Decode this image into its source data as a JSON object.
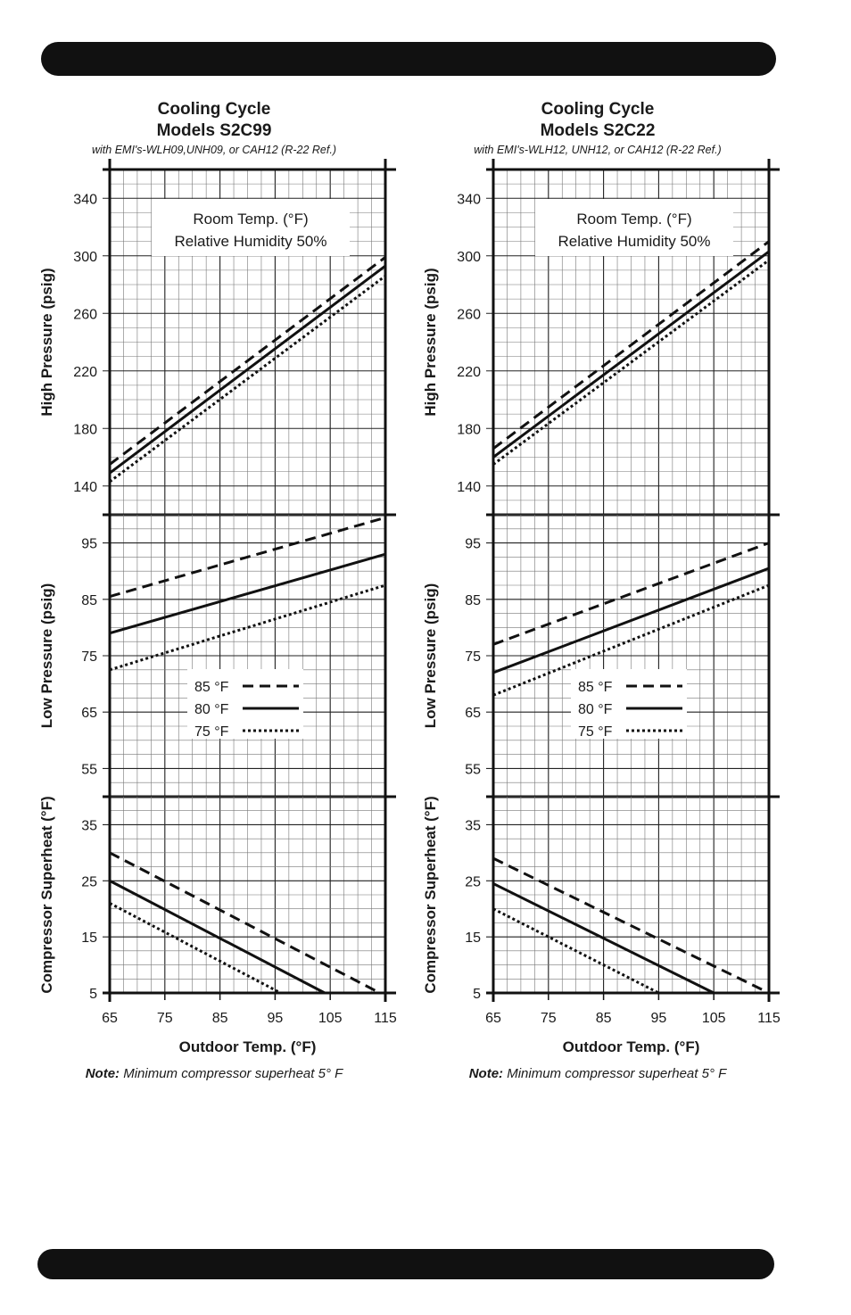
{
  "colors": {
    "ink": "#111111",
    "grid": "#777777",
    "background": "#ffffff"
  },
  "panels": [
    {
      "title1": "Cooling Cycle",
      "title2": "Models S2C99",
      "subtitle": "with EMI's-WLH09,UNH09, or CAH12 (R-22 Ref.)",
      "note_bold": "Note:",
      "note_text": " Minimum compressor superheat  5° F"
    },
    {
      "title1": "Cooling Cycle",
      "title2": "Models S2C22",
      "subtitle": "with EMI's-WLH12, UNH12, or CAH12 (R-22 Ref.)",
      "note_bold": "Note:",
      "note_text": " Minimum compressor superheat  5° F"
    }
  ],
  "room_box": {
    "line1": "Room Temp. (°F)",
    "line2": "Relative Humidity 50%"
  },
  "legend": [
    {
      "label": "85 °F",
      "dash": "dashed"
    },
    {
      "label": "80 °F",
      "dash": "solid"
    },
    {
      "label": "75 °F",
      "dash": "dotted"
    }
  ],
  "chart_data": [
    {
      "type": "line",
      "title": "Cooling Cycle Models S2C99",
      "xlabel": "Outdoor Temp. (°F)",
      "xlim": [
        65,
        115
      ],
      "x_ticks": [
        65,
        75,
        85,
        95,
        105,
        115
      ],
      "subplots": [
        {
          "name": "high",
          "ylabel": "High Pressure (psig)",
          "ylim": [
            120,
            360
          ],
          "y_ticks": [
            140,
            180,
            220,
            260,
            300,
            340
          ],
          "series": [
            {
              "name": "85 °F",
              "x": [
                65,
                115
              ],
              "y": [
                155,
                299
              ]
            },
            {
              "name": "80 °F",
              "x": [
                65,
                115
              ],
              "y": [
                149,
                293
              ]
            },
            {
              "name": "75 °F",
              "x": [
                65,
                115
              ],
              "y": [
                143,
                286
              ]
            }
          ]
        },
        {
          "name": "low",
          "ylabel": "Low Pressure (psig)",
          "ylim": [
            50,
            100
          ],
          "y_ticks": [
            55,
            65,
            75,
            85,
            95
          ],
          "series": [
            {
              "name": "85 °F",
              "x": [
                65,
                115
              ],
              "y": [
                85.5,
                99.5
              ]
            },
            {
              "name": "80 °F",
              "x": [
                65,
                115
              ],
              "y": [
                79,
                93
              ]
            },
            {
              "name": "75 °F",
              "x": [
                65,
                115
              ],
              "y": [
                72.5,
                87.5
              ]
            }
          ]
        },
        {
          "name": "superheat",
          "ylabel": "Compressor Superheat (°F)",
          "ylim": [
            5,
            40
          ],
          "y_ticks": [
            5,
            15,
            25,
            35
          ],
          "series": [
            {
              "name": "85 °F",
              "x": [
                65,
                114
              ],
              "y": [
                30,
                5
              ]
            },
            {
              "name": "80 °F",
              "x": [
                65,
                104
              ],
              "y": [
                25,
                5
              ]
            },
            {
              "name": "75 °F",
              "x": [
                65,
                96
              ],
              "y": [
                21,
                5
              ]
            }
          ]
        }
      ]
    },
    {
      "type": "line",
      "title": "Cooling Cycle Models S2C22",
      "xlabel": "Outdoor Temp. (°F)",
      "xlim": [
        65,
        115
      ],
      "x_ticks": [
        65,
        75,
        85,
        95,
        105,
        115
      ],
      "subplots": [
        {
          "name": "high",
          "ylabel": "High Pressure (psig)",
          "ylim": [
            120,
            360
          ],
          "y_ticks": [
            140,
            180,
            220,
            260,
            300,
            340
          ],
          "series": [
            {
              "name": "85 °F",
              "x": [
                65,
                115
              ],
              "y": [
                166,
                310
              ]
            },
            {
              "name": "80 °F",
              "x": [
                65,
                115
              ],
              "y": [
                160,
                303
              ]
            },
            {
              "name": "75 °F",
              "x": [
                65,
                115
              ],
              "y": [
                155,
                297
              ]
            }
          ]
        },
        {
          "name": "low",
          "ylabel": "Low Pressure (psig)",
          "ylim": [
            50,
            100
          ],
          "y_ticks": [
            55,
            65,
            75,
            85,
            95
          ],
          "series": [
            {
              "name": "85 °F",
              "x": [
                65,
                115
              ],
              "y": [
                77,
                95
              ]
            },
            {
              "name": "80 °F",
              "x": [
                65,
                115
              ],
              "y": [
                72,
                90.5
              ]
            },
            {
              "name": "75 °F",
              "x": [
                65,
                115
              ],
              "y": [
                68,
                87.5
              ]
            }
          ]
        },
        {
          "name": "superheat",
          "ylabel": "Compressor Superheat (°F)",
          "ylim": [
            5,
            40
          ],
          "y_ticks": [
            5,
            15,
            25,
            35
          ],
          "series": [
            {
              "name": "85 °F",
              "x": [
                65,
                115
              ],
              "y": [
                29,
                5
              ]
            },
            {
              "name": "80 °F",
              "x": [
                65,
                105
              ],
              "y": [
                24.5,
                5
              ]
            },
            {
              "name": "75 °F",
              "x": [
                65,
                95
              ],
              "y": [
                20,
                5
              ]
            }
          ]
        }
      ]
    }
  ]
}
